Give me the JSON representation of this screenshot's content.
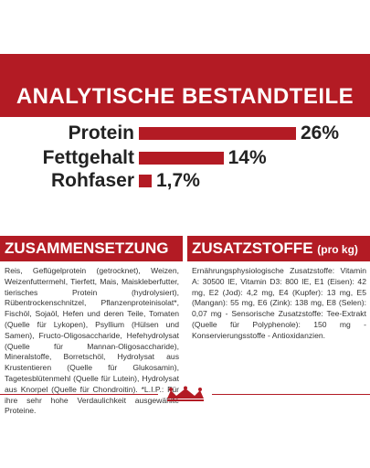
{
  "title": "ANALYTISCHE BESTANDTEILE",
  "nutrients": [
    {
      "label": "Protein",
      "value": "26%",
      "pct": 26
    },
    {
      "label": "Fettgehalt",
      "value": "14%",
      "pct": 14
    },
    {
      "label": "Rohfaser",
      "value": "1,7%",
      "pct": 1.7
    }
  ],
  "composition": {
    "heading": "ZUSAMMENSETZUNG",
    "text": "Reis, Geflügelprotein (getrocknet), Weizen, Weizenfuttermehl, Tierfett, Mais, Maiskleberfutter, tierisches Protein (hydrolysiert), Rübentrockenschnitzel, Pflanzenproteinisolat*, Fischöl, Sojaöl, Hefen und deren Teile, Tomaten (Quelle für Lykopen), Psyllium (Hülsen und Samen), Fructo-Oligosaccharide, Hefehydrolysat (Quelle für Mannan-Oligosaccharide), Mineralstoffe, Borretschöl, Hydrolysat aus Krustentieren (Quelle für Glukosamin), Tagetesblütenmehl (Quelle für Lutein), Hydrolysat aus Knorpel (Quelle für Chondroitin). *L.I.P.: Für ihre sehr hohe Verdaulichkeit ausgewählte Proteine."
  },
  "additives": {
    "heading": "ZUSATZSTOFFE",
    "heading_small": "(pro kg)",
    "text": "Ernährungsphysiologische Zusatzstoffe: Vitamin A: 30500 IE, Vitamin D3: 800 IE, E1 (Eisen): 42 mg, E2 (Jod): 4,2 mg, E4 (Kupfer): 13 mg, E5 (Mangan): 55 mg, E6 (Zink): 138 mg, E8 (Selen): 0,07 mg - Sensorische Zusatzstoffe: Tee-Extrakt (Quelle für Polyphenole): 150 mg - Konservierungsstoffe - Antioxidanzien."
  },
  "colors": {
    "brand_red": "#b31b24"
  },
  "logo_icon": "royal-canin-crown-icon"
}
